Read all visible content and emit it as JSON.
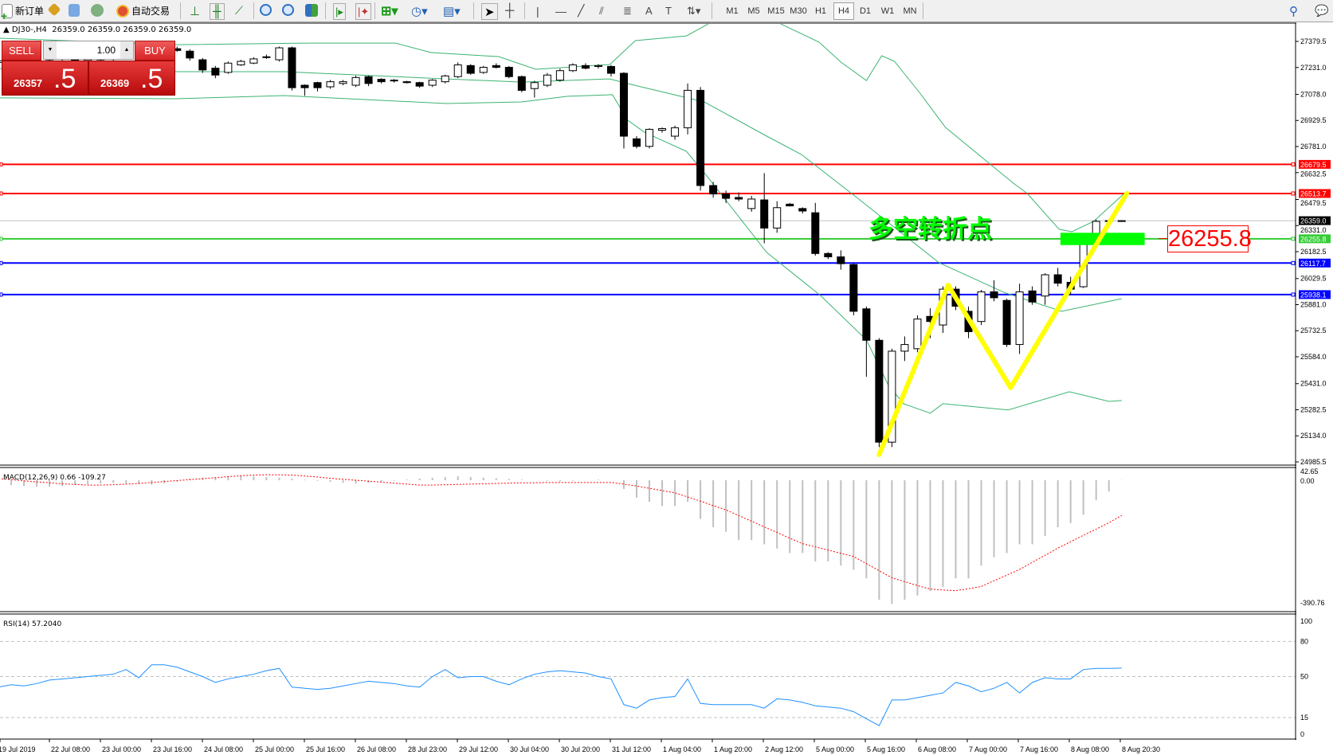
{
  "toolbar": {
    "new_order": "新订单",
    "auto_trading": "自动交易",
    "icons": [
      "new-order-icon",
      "market-watch-icon",
      "history-icon",
      "signals-icon",
      "auto-trading-icon",
      "bar-chart-icon",
      "candlestick-icon",
      "line-chart-icon",
      "zoom-in-icon",
      "zoom-out-icon",
      "tile-windows-icon",
      "auto-scroll-icon",
      "chart-shift-icon",
      "indicators-icon",
      "periods-icon",
      "templates-icon",
      "cursor-icon",
      "crosshair-icon",
      "vertical-line-icon",
      "horizontal-line-icon",
      "trendline-icon",
      "equidistant-channel-icon",
      "fibonacci-icon",
      "text-icon",
      "text-label-icon",
      "arrows-icon",
      "search-icon",
      "chat-icon"
    ],
    "timeframes": [
      "M1",
      "M5",
      "M15",
      "M30",
      "H1",
      "H4",
      "D1",
      "W1",
      "MN"
    ],
    "active_timeframe": "H4"
  },
  "chart": {
    "symbol": "DJ30-,H4",
    "ohlc": "26359.0 26359.0 26359.0 26359.0"
  },
  "one_click": {
    "sell_label": "SELL",
    "buy_label": "BUY",
    "lot": "1.00",
    "sell_main": "26357",
    "sell_big": ".5",
    "buy_main": "26369",
    "buy_big": ".5",
    "color": "#d62424"
  },
  "price_axis": [
    "27379.5",
    "27231.0",
    "27078.0",
    "26929.5",
    "26781.0",
    "26632.5",
    "26479.5",
    "26331.0",
    "26182.5",
    "26029.5",
    "25881.0",
    "25732.5",
    "25584.0",
    "25431.0",
    "25282.5",
    "25134.0",
    "24985.5"
  ],
  "hlines": [
    {
      "price": 26679.5,
      "label": "26679.5",
      "color": "#ff0000"
    },
    {
      "price": 26513.7,
      "label": "26513.7",
      "color": "#ff0000"
    },
    {
      "price": 26255.8,
      "label": "26255.8",
      "color": "#33cc33"
    },
    {
      "price": 26117.7,
      "label": "26117.7",
      "color": "#0000ff"
    },
    {
      "price": 25938.1,
      "label": "25938.1",
      "color": "#0000ff"
    }
  ],
  "current_price": {
    "price": 26359.0,
    "label": "26359.0"
  },
  "annotation": {
    "text": "多空转折点",
    "text_color": "#00ff00",
    "price_label": "26255.8",
    "zone_color": "#00ff00",
    "zone_price": [
      26220,
      26290
    ],
    "zone_bars": [
      83.2,
      89.8
    ]
  },
  "zigzag": {
    "color": "#ffff00",
    "points": [
      [
        69.0,
        25027
      ],
      [
        74.4,
        25992
      ],
      [
        79.3,
        25408
      ],
      [
        88.4,
        26514
      ]
    ]
  },
  "time_axis": [
    "19 Jul 2019",
    "22 Jul 08:00",
    "23 Jul 00:00",
    "23 Jul 16:00",
    "24 Jul 08:00",
    "25 Jul 00:00",
    "25 Jul 16:00",
    "26 Jul 08:00",
    "28 Jul 23:00",
    "29 Jul 12:00",
    "30 Jul 04:00",
    "30 Jul 20:00",
    "31 Jul 12:00",
    "1 Aug 04:00",
    "1 Aug 20:00",
    "2 Aug 12:00",
    "5 Aug 00:00",
    "5 Aug 16:00",
    "6 Aug 08:00",
    "7 Aug 00:00",
    "7 Aug 16:00",
    "8 Aug 08:00",
    "8 Aug 20:30"
  ],
  "candles": [
    [
      27260,
      27290,
      27230,
      27270
    ],
    [
      27270,
      27300,
      27250,
      27280
    ],
    [
      27280,
      27310,
      27260,
      27265
    ],
    [
      27265,
      27290,
      27240,
      27275
    ],
    [
      27275,
      27300,
      27255,
      27290
    ],
    [
      27290,
      27315,
      27270,
      27280
    ],
    [
      27280,
      27300,
      27250,
      27260
    ],
    [
      27260,
      27285,
      27240,
      27275
    ],
    [
      27275,
      27300,
      27260,
      27290
    ],
    [
      27290,
      27310,
      27270,
      27300
    ],
    [
      27300,
      27320,
      27275,
      27285
    ],
    [
      27285,
      27310,
      27260,
      27300
    ],
    [
      27300,
      27330,
      27280,
      27320
    ],
    [
      27320,
      27345,
      27300,
      27338
    ],
    [
      27338,
      27350,
      27320,
      27328
    ],
    [
      27324,
      27335,
      27270,
      27285
    ],
    [
      27275,
      27285,
      27200,
      27217
    ],
    [
      27227,
      27240,
      27170,
      27188
    ],
    [
      27203,
      27265,
      27195,
      27256
    ],
    [
      27246,
      27275,
      27240,
      27266
    ],
    [
      27256,
      27290,
      27250,
      27280
    ],
    [
      27288,
      27305,
      27280,
      27292
    ],
    [
      27275,
      27350,
      27265,
      27343
    ],
    [
      27343,
      27350,
      27100,
      27116
    ],
    [
      27130,
      27135,
      27070,
      27116
    ],
    [
      27145,
      27150,
      27095,
      27116
    ],
    [
      27121,
      27160,
      27110,
      27150
    ],
    [
      27140,
      27160,
      27130,
      27150
    ],
    [
      27130,
      27185,
      27120,
      27174
    ],
    [
      27179,
      27185,
      27125,
      27140
    ],
    [
      27164,
      27170,
      27140,
      27150
    ],
    [
      27159,
      27165,
      27145,
      27155
    ],
    [
      27150,
      27155,
      27140,
      27145
    ],
    [
      27145,
      27150,
      27115,
      27125
    ],
    [
      27130,
      27165,
      27120,
      27159
    ],
    [
      27150,
      27190,
      27140,
      27183
    ],
    [
      27179,
      27260,
      27170,
      27246
    ],
    [
      27242,
      27250,
      27190,
      27198
    ],
    [
      27203,
      27240,
      27195,
      27232
    ],
    [
      27242,
      27255,
      27225,
      27232
    ],
    [
      27232,
      27240,
      27170,
      27179
    ],
    [
      27179,
      27185,
      27090,
      27101
    ],
    [
      27111,
      27155,
      27060,
      27145
    ],
    [
      27130,
      27200,
      27120,
      27188
    ],
    [
      27159,
      27225,
      27150,
      27213
    ],
    [
      27213,
      27255,
      27205,
      27246
    ],
    [
      27242,
      27255,
      27220,
      27227
    ],
    [
      27237,
      27250,
      27225,
      27242
    ],
    [
      27237,
      27245,
      27180,
      27198
    ],
    [
      27198,
      27205,
      26770,
      26840
    ],
    [
      26825,
      26840,
      26770,
      26782
    ],
    [
      26782,
      26885,
      26770,
      26879
    ],
    [
      26874,
      26890,
      26860,
      26883
    ],
    [
      26840,
      26900,
      26820,
      26888
    ],
    [
      26888,
      27140,
      26850,
      27101
    ],
    [
      27101,
      27120,
      26530,
      26559
    ],
    [
      26559,
      26580,
      26490,
      26511
    ],
    [
      26511,
      26530,
      26460,
      26486
    ],
    [
      26491,
      26520,
      26470,
      26482
    ],
    [
      26428,
      26500,
      26410,
      26482
    ],
    [
      26477,
      26630,
      26230,
      26317
    ],
    [
      26317,
      26470,
      26290,
      26433
    ],
    [
      26453,
      26460,
      26440,
      26443
    ],
    [
      26428,
      26435,
      26400,
      26414
    ],
    [
      26404,
      26460,
      26160,
      26172
    ],
    [
      26172,
      26180,
      26140,
      26153
    ],
    [
      26153,
      26190,
      26080,
      26114
    ],
    [
      26109,
      26115,
      25820,
      25843
    ],
    [
      25857,
      25870,
      25470,
      25678
    ],
    [
      25678,
      25690,
      25070,
      25098
    ],
    [
      25098,
      25630,
      25070,
      25616
    ],
    [
      25616,
      25700,
      25560,
      25654
    ],
    [
      25630,
      25820,
      25610,
      25799
    ],
    [
      25814,
      25860,
      25690,
      25785
    ],
    [
      25765,
      25985,
      25720,
      25969
    ],
    [
      25969,
      25985,
      25850,
      25872
    ],
    [
      25843,
      25870,
      25690,
      25727
    ],
    [
      25785,
      25965,
      25765,
      25954
    ],
    [
      25954,
      26020,
      25900,
      25920
    ],
    [
      25905,
      25915,
      25640,
      25654
    ],
    [
      25654,
      26000,
      25600,
      25954
    ],
    [
      25959,
      25985,
      25880,
      25896
    ],
    [
      25930,
      26060,
      25880,
      26051
    ],
    [
      26051,
      26090,
      25985,
      26003
    ],
    [
      26008,
      26040,
      25940,
      25969
    ],
    [
      25983,
      26280,
      25975,
      26270
    ],
    [
      26230,
      26365,
      26220,
      26355
    ],
    [
      26359,
      26362,
      26355,
      26359
    ],
    [
      26359,
      26362,
      26356,
      26359
    ]
  ],
  "bollinger": {
    "color": "#3cb371",
    "upper": [
      [
        0,
        27398
      ],
      [
        13.9,
        27361
      ],
      [
        24.4,
        27370
      ],
      [
        31.1,
        27370
      ],
      [
        33.9,
        27316
      ],
      [
        39.2,
        27293
      ],
      [
        42.1,
        27221
      ],
      [
        47.9,
        27248
      ],
      [
        49.9,
        27384
      ],
      [
        53.9,
        27411
      ],
      [
        55.6,
        27479
      ],
      [
        57,
        27540
      ],
      [
        60,
        27540
      ],
      [
        61.3,
        27479
      ],
      [
        64.3,
        27375
      ],
      [
        66,
        27262
      ],
      [
        68,
        27157
      ],
      [
        69.2,
        27298
      ],
      [
        70.2,
        27266
      ],
      [
        72.2,
        27085
      ],
      [
        74.2,
        26890
      ],
      [
        79.5,
        26573
      ],
      [
        80.6,
        26514
      ],
      [
        83.1,
        26310
      ],
      [
        84.1,
        26296
      ],
      [
        85.8,
        26355
      ],
      [
        88.4,
        26527
      ]
    ],
    "middle": [
      [
        0,
        27225
      ],
      [
        13.9,
        27207
      ],
      [
        22.4,
        27207
      ],
      [
        35.1,
        27166
      ],
      [
        41,
        27148
      ],
      [
        47.9,
        27166
      ],
      [
        49.3,
        27139
      ],
      [
        55.3,
        27035
      ],
      [
        60.2,
        26840
      ],
      [
        62.9,
        26736
      ],
      [
        67.4,
        26482
      ],
      [
        73.7,
        26119
      ],
      [
        78.9,
        25947
      ],
      [
        83.3,
        25843
      ],
      [
        88,
        25915
      ]
    ],
    "lower": [
      [
        0,
        27058
      ],
      [
        13.9,
        27053
      ],
      [
        22.4,
        27071
      ],
      [
        35.1,
        27026
      ],
      [
        41,
        27035
      ],
      [
        44.6,
        27067
      ],
      [
        48.1,
        27076
      ],
      [
        49.3,
        26931
      ],
      [
        50.6,
        26863
      ],
      [
        53.9,
        26754
      ],
      [
        55.3,
        26632
      ],
      [
        60.2,
        26178
      ],
      [
        64.4,
        25933
      ],
      [
        68,
        25680
      ],
      [
        69.7,
        25426
      ],
      [
        70.9,
        25317
      ],
      [
        73,
        25263
      ],
      [
        74,
        25317
      ],
      [
        79.1,
        25281
      ],
      [
        83.9,
        25385
      ],
      [
        87,
        25330
      ],
      [
        88,
        25335
      ]
    ]
  },
  "macd": {
    "label": "MACD(12,26,9) 0.66 -109.27",
    "axis": [
      "42.65",
      "0.00",
      "-390.76"
    ],
    "range": [
      -390.76,
      42.65
    ],
    "histogram_color": "#c0c0c0",
    "signal_color": "#ff0000",
    "histogram": [
      -12,
      -15,
      -18,
      -20,
      -20,
      -18,
      -15,
      -12,
      -10,
      -8,
      -10,
      -12,
      -14,
      -10,
      -5,
      5,
      8,
      10,
      12,
      14,
      12,
      10,
      8,
      5,
      2,
      -2,
      -5,
      -8,
      -10,
      -8,
      -5,
      -2,
      2,
      5,
      8,
      10,
      12,
      10,
      8,
      6,
      4,
      2,
      0,
      -2,
      -4,
      -2,
      0,
      2,
      0,
      -27,
      -54,
      -67,
      -80,
      -80,
      -67,
      -120,
      -146,
      -160,
      -186,
      -186,
      -199,
      -212,
      -226,
      -226,
      -252,
      -252,
      -265,
      -278,
      -305,
      -371,
      -384,
      -371,
      -358,
      -344,
      -331,
      -305,
      -305,
      -265,
      -239,
      -226,
      -199,
      -199,
      -173,
      -146,
      -133,
      -107,
      -62,
      -35,
      0.66
    ],
    "signal": [
      5,
      2,
      -2,
      -5,
      -8,
      -11,
      -13,
      -15,
      -15,
      -14,
      -12,
      -10,
      -7,
      -4,
      -1,
      2,
      5,
      8,
      11,
      14,
      16,
      17,
      17,
      16,
      13,
      10,
      6,
      3,
      0,
      -3,
      -6,
      -9,
      -12,
      -15,
      -15,
      -14,
      -13,
      -12,
      -11,
      -10,
      -9,
      -8,
      -8,
      -7,
      -7,
      -7,
      -7,
      -7,
      -7,
      -12,
      -18,
      -25,
      -32,
      -39,
      -52,
      -65,
      -79,
      -92,
      -110,
      -127,
      -145,
      -162,
      -180,
      -197,
      -207,
      -217,
      -227,
      -237,
      -259,
      -281,
      -303,
      -315,
      -327,
      -338,
      -341,
      -343,
      -337,
      -330,
      -312,
      -295,
      -277,
      -255,
      -233,
      -211,
      -191,
      -171,
      -152,
      -132,
      -109.27
    ]
  },
  "rsi": {
    "label": "RSI(14) 57.2040",
    "axis": [
      "100",
      "80",
      "50",
      "15",
      "0"
    ],
    "levels": [
      80,
      50,
      15
    ],
    "color": "#1e90ff",
    "values": [
      41,
      43,
      42,
      44,
      47,
      48,
      49,
      50,
      51,
      52,
      56,
      49,
      60,
      60,
      58,
      54,
      50,
      45,
      48,
      50,
      52,
      55,
      57,
      41,
      40,
      39,
      40,
      42,
      44,
      46,
      45,
      44,
      42,
      41,
      50,
      56,
      49,
      50,
      50,
      46,
      43,
      48,
      52,
      54,
      55,
      54,
      53,
      50,
      48,
      26,
      23,
      30,
      32,
      33,
      48,
      27,
      26,
      26,
      26,
      26,
      23,
      31,
      30,
      28,
      25,
      24,
      23,
      20,
      14,
      8,
      30,
      30,
      32,
      34,
      36,
      45,
      42,
      37,
      40,
      45,
      36,
      45,
      49,
      48,
      48,
      56,
      57,
      57,
      57.204
    ]
  }
}
